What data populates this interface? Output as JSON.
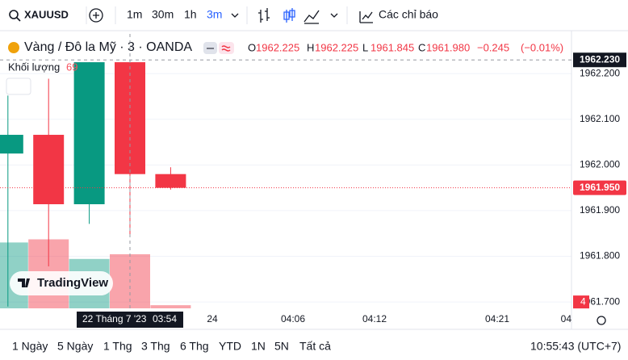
{
  "toolbar": {
    "symbol": "XAUUSD",
    "intervals": [
      "1m",
      "30m",
      "1h",
      "3m"
    ],
    "indicators": "Các chỉ báo"
  },
  "legend": {
    "title": "Vàng / Đô la Mỹ · 3 · OANDA",
    "ohlc": [
      {
        "key": "O",
        "value": 1962.225,
        "label": "1962.225"
      },
      {
        "key": "H",
        "value": 1962.225,
        "label": "1962.225"
      },
      {
        "key": "L",
        "value": 1961.845,
        "label": "1961.845"
      },
      {
        "key": "C",
        "value": 1961.98,
        "label": "1961.980"
      }
    ],
    "change": {
      "value": -0.245,
      "label": "−0.245"
    },
    "change_pct": {
      "value": -0.01,
      "label": "(−0.01%)"
    },
    "volume_title": "Khối lượng"
  },
  "chart_data": {
    "type": "candlestick",
    "categories": [
      null,
      null,
      null,
      null,
      null
    ],
    "open": [
      1962.025,
      1962.066,
      1961.914,
      1962.225,
      1961.98
    ],
    "high": [
      1962.152,
      1962.189,
      1962.225,
      1962.225,
      1961.995
    ],
    "low": [
      1961.69,
      1961.778,
      1961.871,
      1961.845,
      1961.946
    ],
    "close": [
      1962.066,
      1961.914,
      1962.225,
      1961.98,
      1961.95
    ],
    "volume": [
      84,
      88,
      63,
      69,
      4
    ],
    "volume_ylim": [
      0,
      350
    ],
    "up_color": "#089981",
    "down_color": "#f23645",
    "ylim": [
      1961.686,
      1962.287
    ],
    "yticks": [
      {
        "value": 1962.2,
        "label": "1962.200"
      },
      {
        "value": 1962.1,
        "label": "1962.100"
      },
      {
        "value": 1962.0,
        "label": "1962.000"
      },
      {
        "value": 1961.9,
        "label": "1961.900"
      },
      {
        "value": 1961.8,
        "label": "1961.800"
      },
      {
        "value": 1961.7,
        "label": "1961.700"
      }
    ],
    "xtick_labels": [
      "24",
      "04:06",
      "04:12",
      "04:21",
      "04"
    ],
    "crosshair": {
      "date": "22 Tháng 7 '23",
      "time": "03:54",
      "price": {
        "value": 1962.23,
        "label": "1962.230"
      }
    },
    "last_price": {
      "value": 1961.95,
      "label": "1961.950"
    },
    "watermark": "TradingView"
  },
  "footer": {
    "ranges": [
      "1 Ngày",
      "5 Ngày",
      "1 Thg",
      "3 Thg",
      "6 Thg",
      "YTD",
      "1N",
      "5N",
      "Tất cả"
    ],
    "clock": "10:55:43 (UTC+7)"
  }
}
